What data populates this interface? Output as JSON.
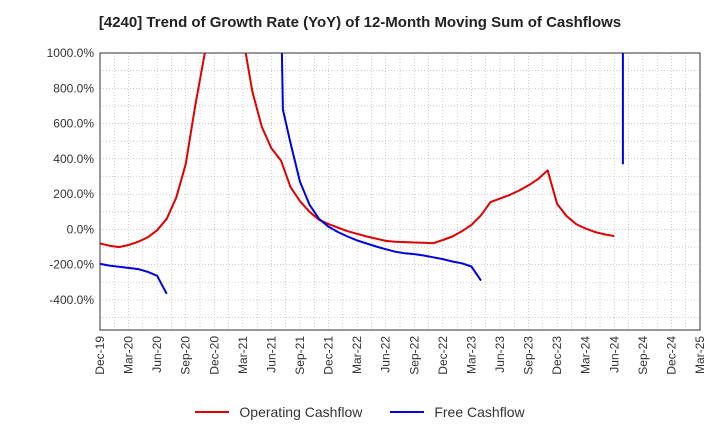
{
  "chart_data": {
    "type": "line",
    "title": "[4240]  Trend of Growth Rate (YoY) of 12-Month Moving Sum of Cashflows",
    "xlabel": "",
    "ylabel": "",
    "ylim": [
      -570,
      1000
    ],
    "y_ticks": [
      "1000.0%",
      "800.0%",
      "600.0%",
      "400.0%",
      "200.0%",
      "0.0%",
      "-200.0%",
      "-400.0%"
    ],
    "y_tick_values": [
      1000,
      800,
      600,
      400,
      200,
      0,
      -200,
      -400
    ],
    "x_tick_labels": [
      "Dec-19",
      "Mar-20",
      "Jun-20",
      "Sep-20",
      "Dec-20",
      "Mar-21",
      "Jun-21",
      "Sep-21",
      "Dec-21",
      "Mar-22",
      "Jun-22",
      "Sep-22",
      "Dec-22",
      "Mar-23",
      "Jun-23",
      "Sep-23",
      "Dec-23",
      "Mar-24",
      "Jun-24",
      "Sep-24",
      "Dec-24",
      "Mar-25"
    ],
    "grid": true,
    "legend_position": "bottom",
    "series": [
      {
        "name": "Operating Cashflow",
        "color": "#e00000",
        "points": [
          [
            0,
            -80
          ],
          [
            1,
            -92
          ],
          [
            2,
            -100
          ],
          [
            3,
            -88
          ],
          [
            4,
            -70
          ],
          [
            5,
            -45
          ],
          [
            6,
            -5
          ],
          [
            7,
            60
          ],
          [
            8,
            180
          ],
          [
            9,
            370
          ],
          [
            10,
            700
          ],
          [
            11,
            1000
          ]
        ],
        "points2": [
          [
            15.3,
            1000
          ],
          [
            16,
            780
          ],
          [
            17,
            580
          ],
          [
            18,
            460
          ],
          [
            19,
            390
          ],
          [
            20,
            240
          ],
          [
            21,
            160
          ],
          [
            22,
            100
          ],
          [
            23,
            55
          ],
          [
            24,
            30
          ],
          [
            25,
            10
          ],
          [
            26,
            -10
          ],
          [
            27,
            -25
          ],
          [
            28,
            -40
          ],
          [
            29,
            -52
          ],
          [
            30,
            -65
          ],
          [
            31,
            -70
          ],
          [
            32,
            -72
          ],
          [
            33,
            -74
          ],
          [
            34,
            -76
          ],
          [
            35,
            -78
          ],
          [
            36,
            -60
          ],
          [
            37,
            -40
          ],
          [
            38,
            -10
          ],
          [
            39,
            25
          ],
          [
            40,
            80
          ],
          [
            41,
            155
          ],
          [
            42,
            175
          ],
          [
            43,
            195
          ],
          [
            44,
            220
          ],
          [
            45,
            250
          ],
          [
            46,
            285
          ],
          [
            47,
            335
          ],
          [
            48,
            145
          ],
          [
            49,
            75
          ],
          [
            50,
            30
          ],
          [
            51,
            5
          ],
          [
            52,
            -15
          ],
          [
            53,
            -28
          ],
          [
            54,
            -38
          ]
        ]
      },
      {
        "name": "Free Cashflow",
        "color": "#0000e0",
        "points": [
          [
            0,
            -195
          ],
          [
            1,
            -205
          ],
          [
            2,
            -212
          ],
          [
            3,
            -218
          ],
          [
            4,
            -225
          ],
          [
            5,
            -240
          ],
          [
            6,
            -262
          ],
          [
            7,
            -365
          ]
        ],
        "points2": [
          [
            19.1,
            1000
          ],
          [
            19.2,
            680
          ],
          [
            20,
            490
          ],
          [
            21,
            270
          ],
          [
            22,
            140
          ],
          [
            23,
            60
          ],
          [
            24,
            15
          ],
          [
            25,
            -15
          ],
          [
            26,
            -40
          ],
          [
            27,
            -62
          ],
          [
            28,
            -80
          ],
          [
            29,
            -97
          ],
          [
            30,
            -112
          ],
          [
            31,
            -126
          ],
          [
            32,
            -135
          ],
          [
            33,
            -140
          ],
          [
            34,
            -148
          ],
          [
            35,
            -158
          ],
          [
            36,
            -168
          ],
          [
            37,
            -182
          ],
          [
            38,
            -192
          ],
          [
            39,
            -210
          ],
          [
            40,
            -290
          ]
        ],
        "points3": [
          [
            54.9,
            1000
          ],
          [
            54.9,
            370
          ]
        ]
      }
    ]
  }
}
